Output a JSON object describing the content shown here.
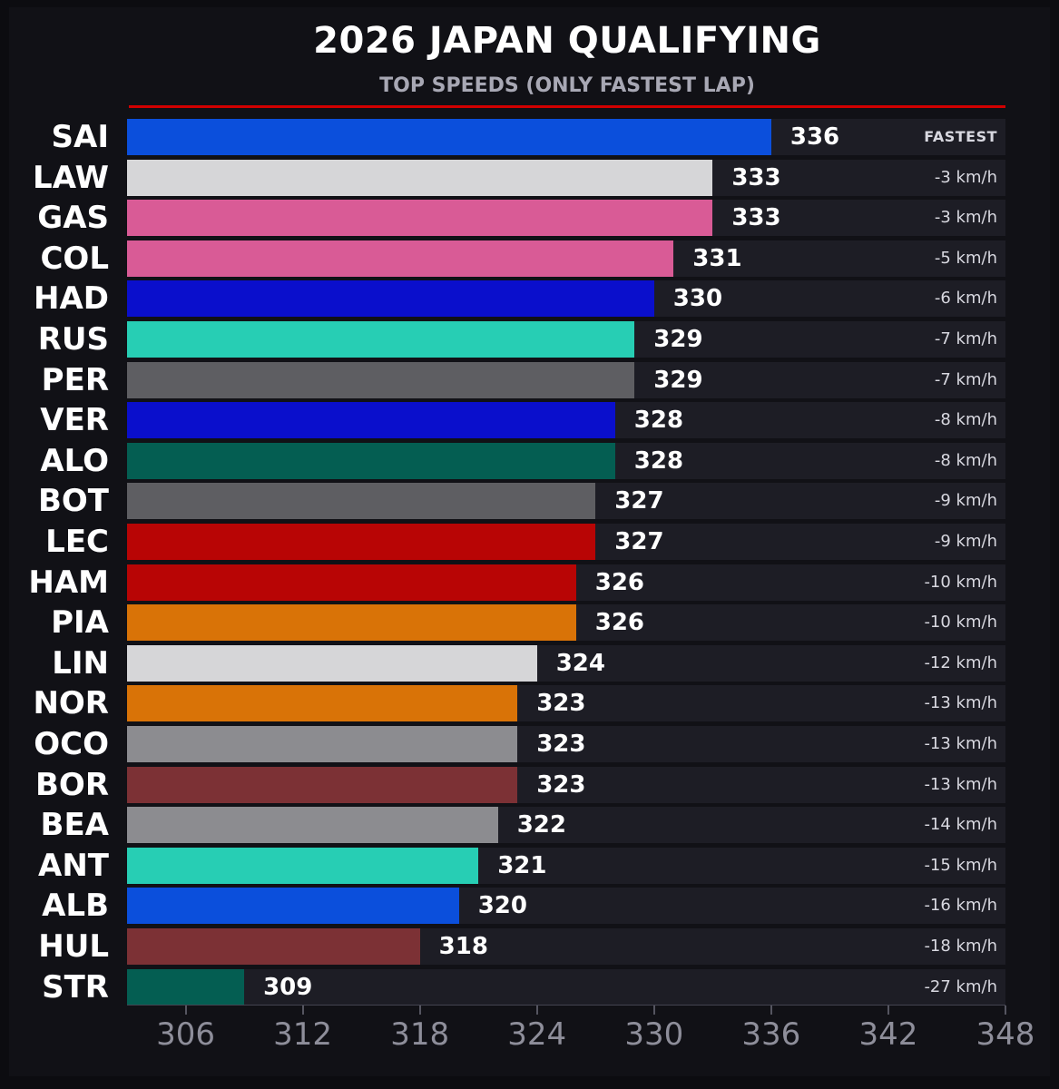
{
  "title": "2026 JAPAN QUALIFYING",
  "subtitle": "TOP SPEEDS (ONLY FASTEST LAP)",
  "chart_data": {
    "type": "bar",
    "orientation": "horizontal",
    "title": "2026 JAPAN QUALIFYING",
    "subtitle": "TOP SPEEDS (ONLY FASTEST LAP)",
    "xlim": [
      303,
      348
    ],
    "xticks": [
      306,
      312,
      318,
      324,
      330,
      336,
      342,
      348
    ],
    "grid": false,
    "bars": [
      {
        "driver": "SAI",
        "value": 336,
        "gap": "FASTEST",
        "color": "#0b4fdc"
      },
      {
        "driver": "LAW",
        "value": 333,
        "gap": "-3 km/h",
        "color": "#d6d6d8"
      },
      {
        "driver": "GAS",
        "value": 333,
        "gap": "-3 km/h",
        "color": "#d95b96"
      },
      {
        "driver": "COL",
        "value": 331,
        "gap": "-5 km/h",
        "color": "#d95b96"
      },
      {
        "driver": "HAD",
        "value": 330,
        "gap": "-6 km/h",
        "color": "#0a0fcc"
      },
      {
        "driver": "RUS",
        "value": 329,
        "gap": "-7 km/h",
        "color": "#27ceb4"
      },
      {
        "driver": "PER",
        "value": 329,
        "gap": "-7 km/h",
        "color": "#5e5e62"
      },
      {
        "driver": "VER",
        "value": 328,
        "gap": "-8 km/h",
        "color": "#0a0fcc"
      },
      {
        "driver": "ALO",
        "value": 328,
        "gap": "-8 km/h",
        "color": "#045e52"
      },
      {
        "driver": "BOT",
        "value": 327,
        "gap": "-9 km/h",
        "color": "#5e5e62"
      },
      {
        "driver": "LEC",
        "value": 327,
        "gap": "-9 km/h",
        "color": "#b80505"
      },
      {
        "driver": "HAM",
        "value": 326,
        "gap": "-10 km/h",
        "color": "#b80505"
      },
      {
        "driver": "PIA",
        "value": 326,
        "gap": "-10 km/h",
        "color": "#d97307"
      },
      {
        "driver": "LIN",
        "value": 324,
        "gap": "-12 km/h",
        "color": "#d6d6d8"
      },
      {
        "driver": "NOR",
        "value": 323,
        "gap": "-13 km/h",
        "color": "#d97307"
      },
      {
        "driver": "OCO",
        "value": 323,
        "gap": "-13 km/h",
        "color": "#8c8c90"
      },
      {
        "driver": "BOR",
        "value": 323,
        "gap": "-13 km/h",
        "color": "#7c3135"
      },
      {
        "driver": "BEA",
        "value": 322,
        "gap": "-14 km/h",
        "color": "#8c8c90"
      },
      {
        "driver": "ANT",
        "value": 321,
        "gap": "-15 km/h",
        "color": "#27ceb4"
      },
      {
        "driver": "ALB",
        "value": 320,
        "gap": "-16 km/h",
        "color": "#0b4fdc"
      },
      {
        "driver": "HUL",
        "value": 318,
        "gap": "-18 km/h",
        "color": "#7c3135"
      },
      {
        "driver": "STR",
        "value": 309,
        "gap": "-27 km/h",
        "color": "#045e52"
      }
    ]
  }
}
